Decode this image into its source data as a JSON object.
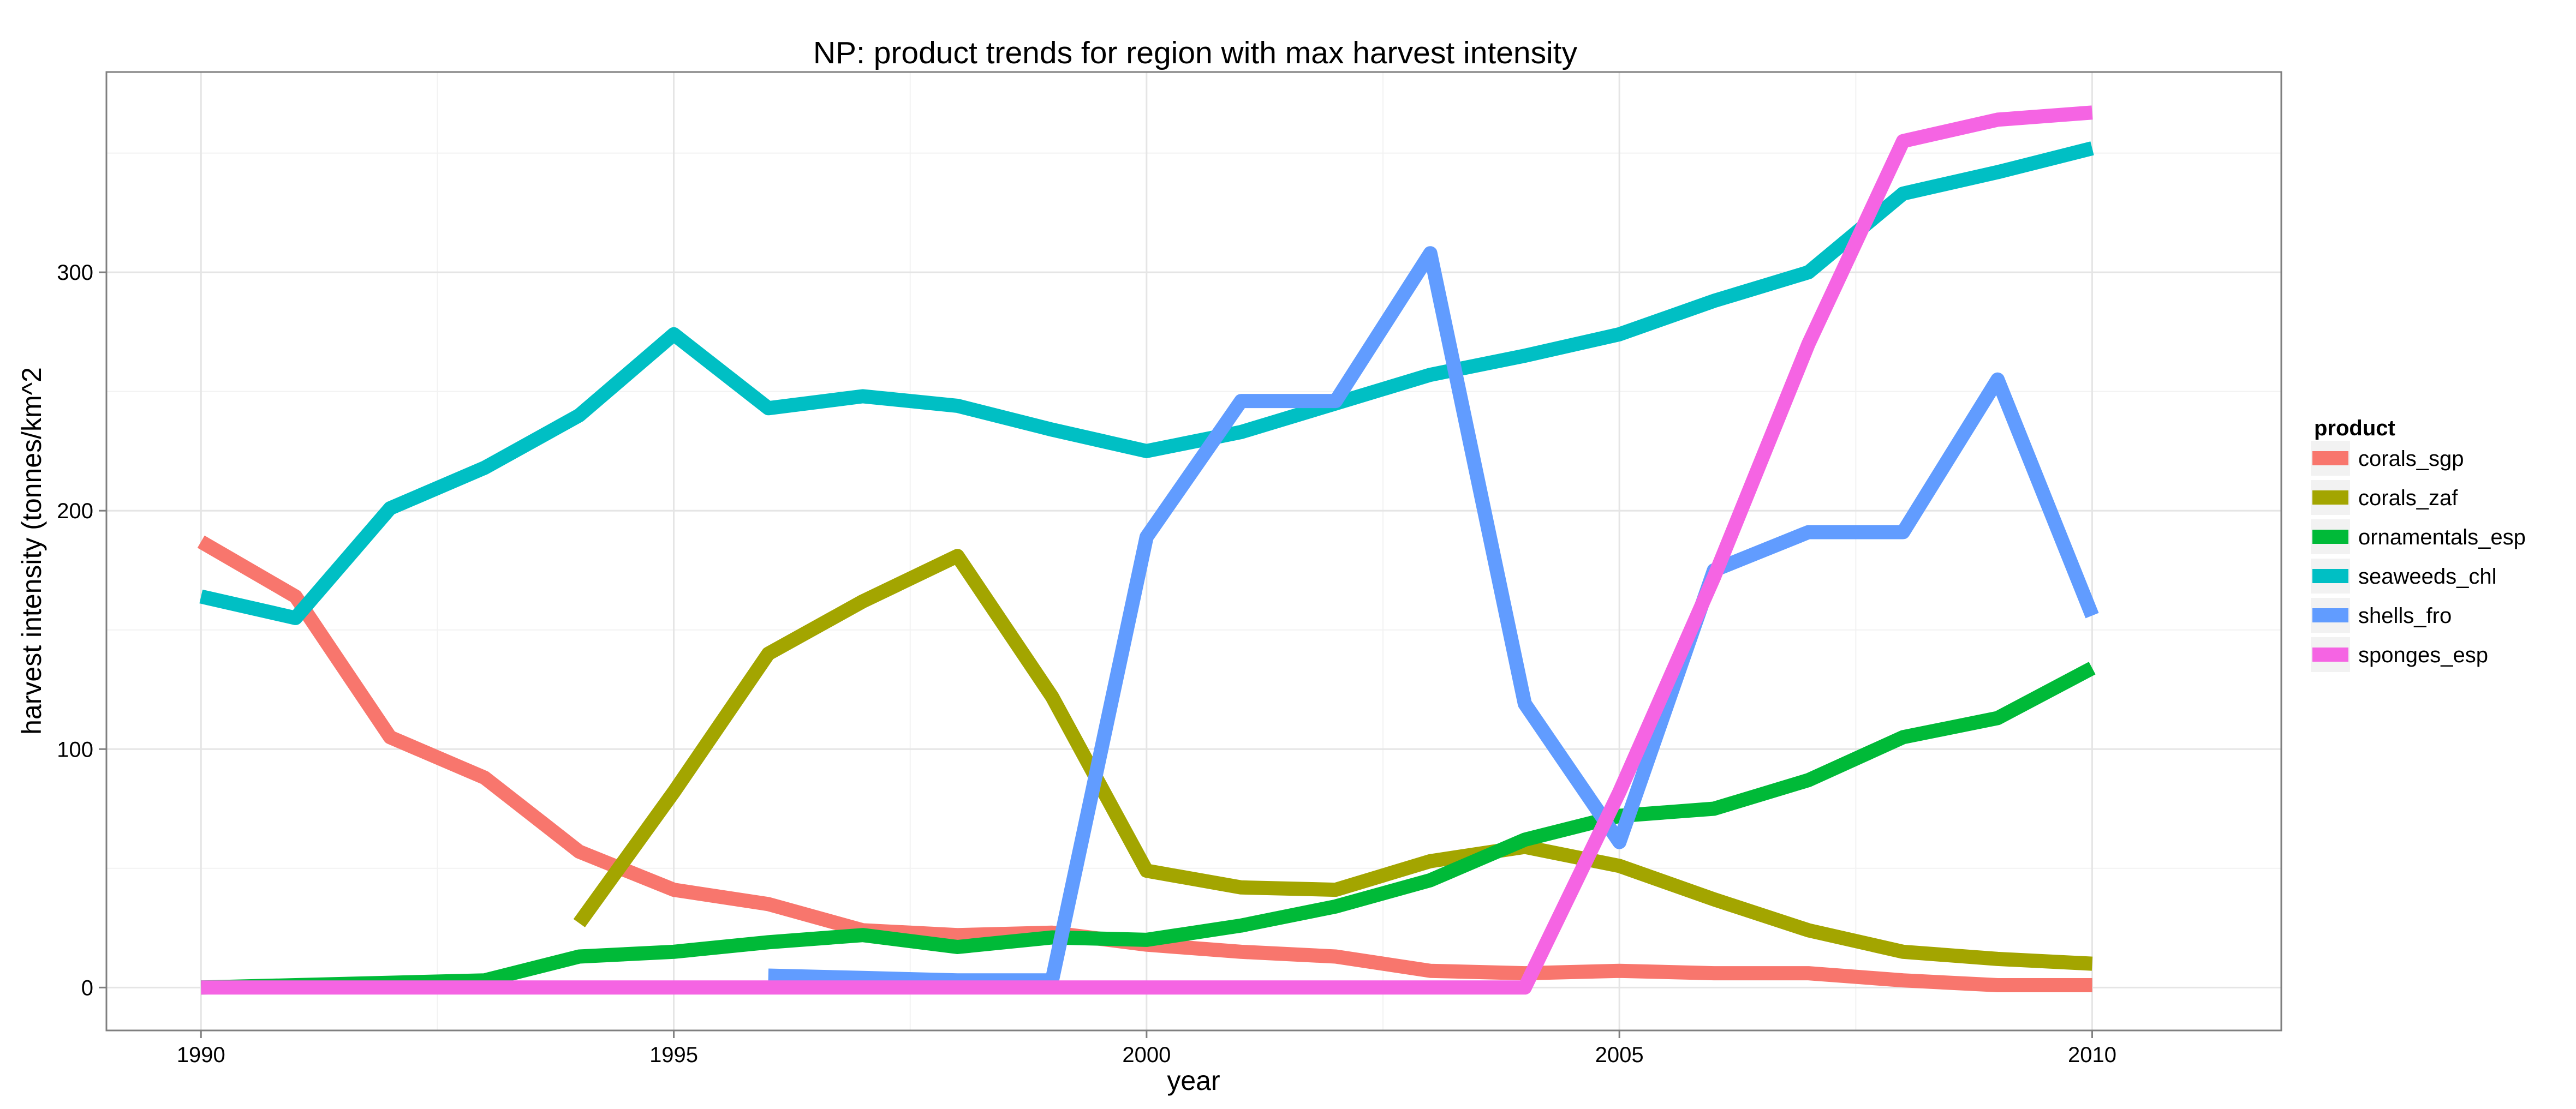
{
  "chart_data": {
    "type": "line",
    "title": "NP: product trends for region with max harvest intensity",
    "xlabel": "year",
    "ylabel": "harvest intensity (tonnes/km^2",
    "xlim": [
      1989,
      2012
    ],
    "ylim": [
      -18,
      384
    ],
    "x_ticks": [
      1990,
      1995,
      2000,
      2005,
      2010
    ],
    "y_ticks": [
      0,
      100,
      200,
      300
    ],
    "grid": true,
    "legend_position": "right",
    "legend_title": "product",
    "series": [
      {
        "name": "corals_sgp",
        "color": "#F8766D",
        "x": [
          1990,
          1991,
          1992,
          1993,
          1994,
          1995,
          1996,
          1997,
          1998,
          1999,
          2000,
          2001,
          2002,
          2003,
          2004,
          2005,
          2006,
          2007,
          2008,
          2009,
          2010
        ],
        "y": [
          187,
          164,
          105,
          88,
          57,
          41,
          35,
          24,
          22,
          23,
          18,
          15,
          13,
          7,
          6,
          7,
          6,
          6,
          3,
          1,
          1
        ]
      },
      {
        "name": "corals_zaf",
        "color": "#A3A500",
        "x": [
          1994,
          1995,
          1996,
          1997,
          1998,
          1999,
          2000,
          2001,
          2002,
          2003,
          2004,
          2005,
          2006,
          2007,
          2008,
          2009,
          2010
        ],
        "y": [
          27,
          82,
          140,
          162,
          181,
          122,
          49,
          42,
          41,
          53,
          59,
          51,
          37,
          24,
          15,
          12,
          10
        ]
      },
      {
        "name": "ornamentals_esp",
        "color": "#00BA38",
        "x": [
          1990,
          1991,
          1992,
          1993,
          1994,
          1995,
          1996,
          1997,
          1998,
          1999,
          2000,
          2001,
          2002,
          2003,
          2004,
          2005,
          2006,
          2007,
          2008,
          2009,
          2010
        ],
        "y": [
          0,
          1,
          2,
          3,
          13,
          15,
          19,
          22,
          17,
          21,
          20,
          26,
          34,
          45,
          62,
          72,
          75,
          87,
          105,
          113,
          134
        ]
      },
      {
        "name": "seaweeds_chl",
        "color": "#00BFC4",
        "x": [
          1990,
          1991,
          1992,
          1993,
          1994,
          1995,
          1996,
          1997,
          1998,
          1999,
          2000,
          2001,
          2002,
          2003,
          2004,
          2005,
          2006,
          2007,
          2008,
          2009,
          2010
        ],
        "y": [
          164,
          155,
          201,
          218,
          240,
          274,
          243,
          248,
          244,
          234,
          225,
          233,
          245,
          257,
          265,
          274,
          288,
          300,
          333,
          342,
          352
        ]
      },
      {
        "name": "shells_fro",
        "color": "#619CFF",
        "x": [
          1996,
          1997,
          1998,
          1999,
          2000,
          2001,
          2002,
          2003,
          2004,
          2005,
          2006,
          2007,
          2008,
          2009,
          2010
        ],
        "y": [
          5,
          4,
          3,
          3,
          189,
          246,
          246,
          308,
          119,
          61,
          175,
          191,
          191,
          255,
          156
        ]
      },
      {
        "name": "sponges_esp",
        "color": "#F564E3",
        "x": [
          1990,
          1991,
          1992,
          1993,
          1994,
          1995,
          1996,
          1997,
          1998,
          1999,
          2000,
          2001,
          2002,
          2003,
          2004,
          2005,
          2006,
          2007,
          2008,
          2009,
          2010
        ],
        "y": [
          0,
          0,
          0,
          0,
          0,
          0,
          0,
          0,
          0,
          0,
          0,
          0,
          0,
          0,
          0,
          82,
          172,
          270,
          355,
          364,
          367
        ]
      }
    ]
  }
}
